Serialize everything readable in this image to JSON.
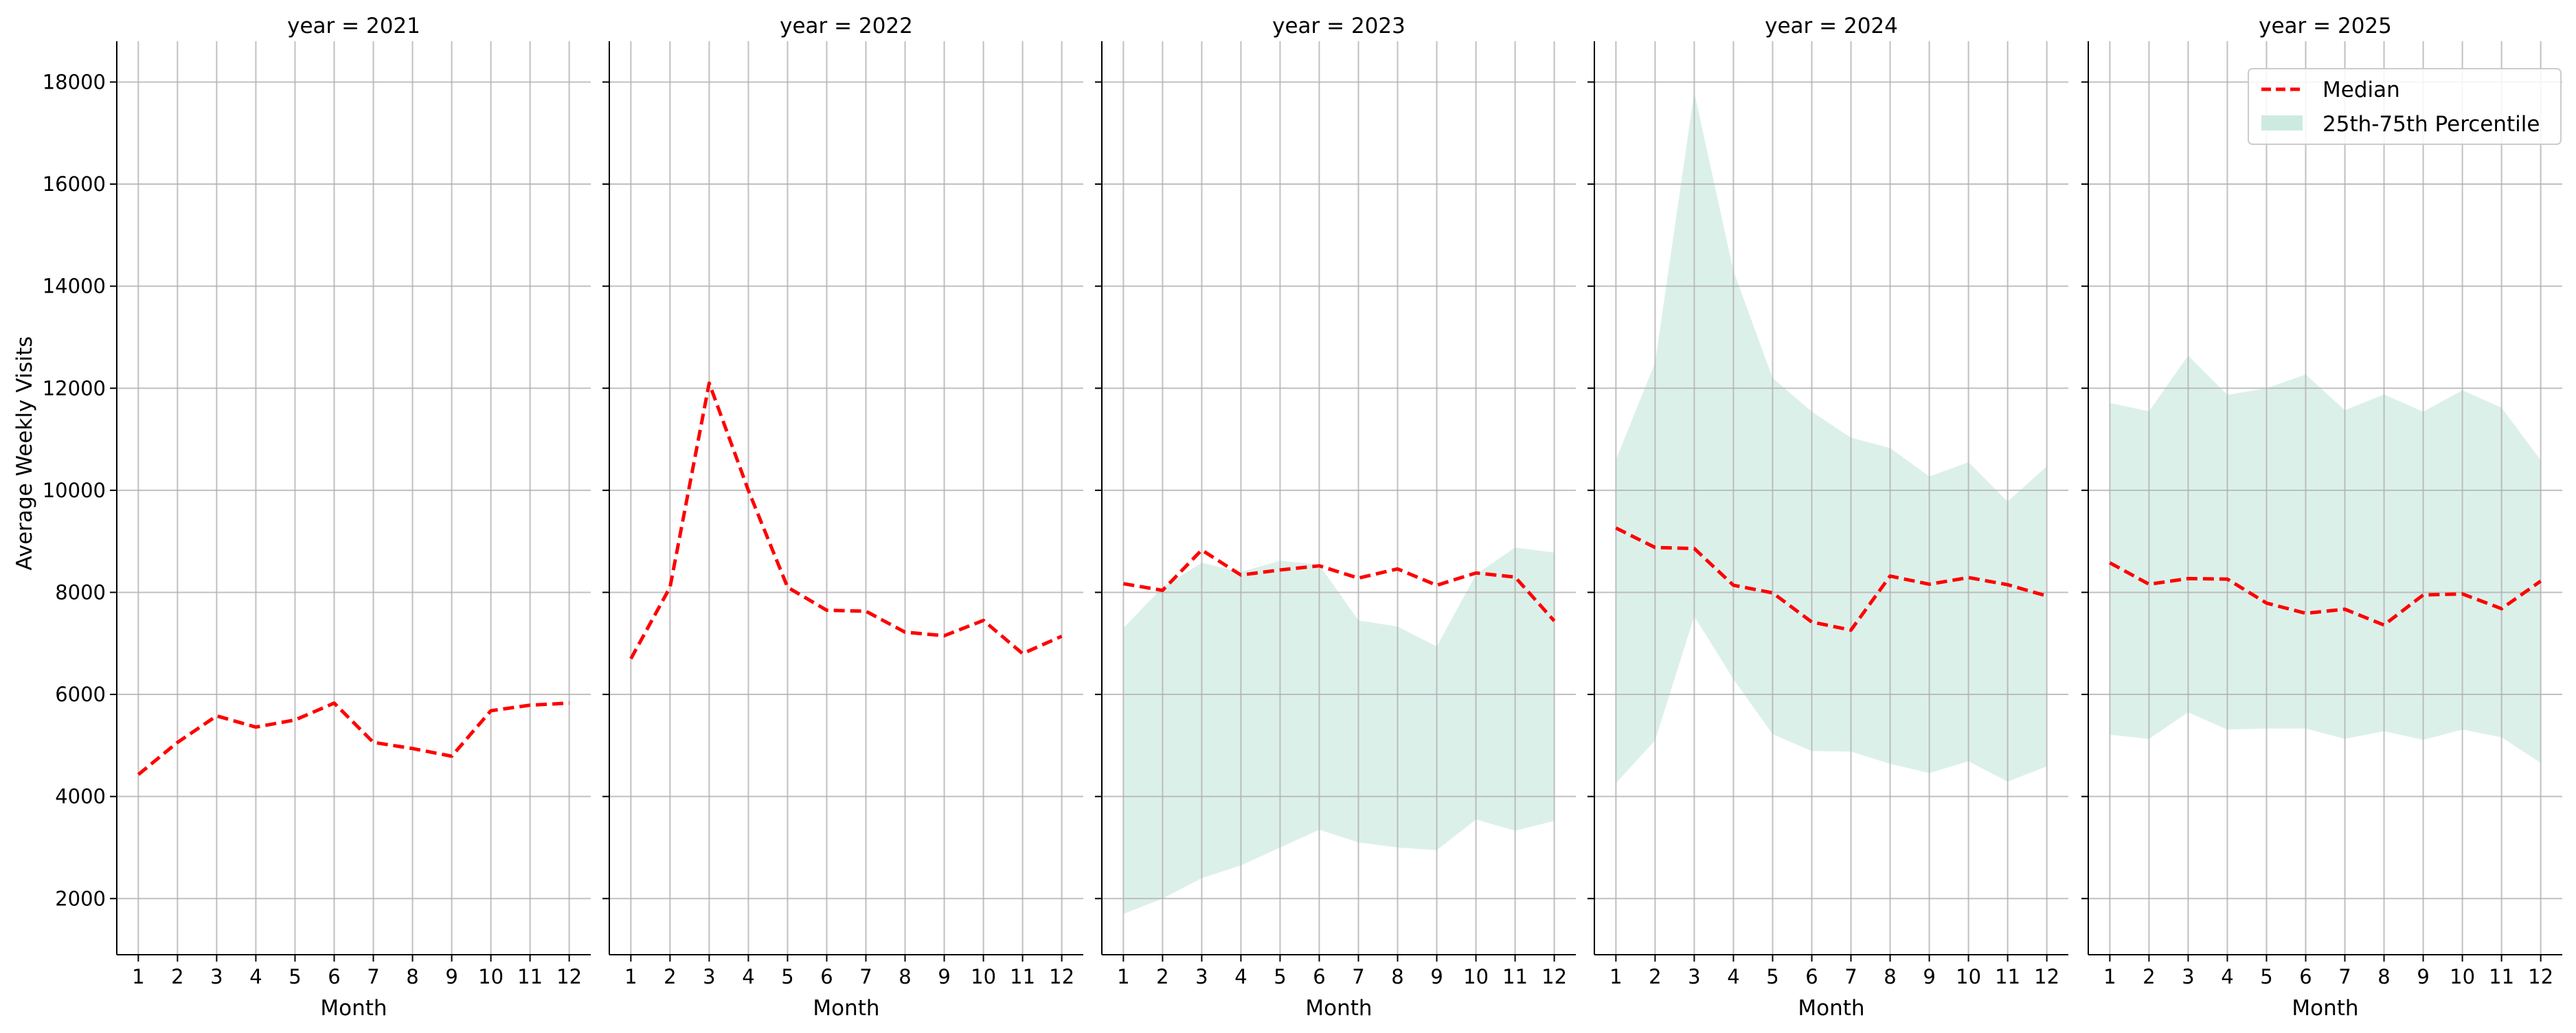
{
  "figure": {
    "ylabel": "Average Weekly Visits",
    "xlabel": "Month",
    "legend": {
      "median": "Median",
      "band": "25th-75th Percentile",
      "placement": "upper-right"
    }
  },
  "colors": {
    "median": "#ff0000",
    "band": "#cdeae1",
    "grid": "#b0b0b0",
    "axis": "#000000"
  },
  "chart_data": [
    {
      "type": "line",
      "title": "year = 2021",
      "xlabel": "Month",
      "ylabel": "Average Weekly Visits",
      "x": [
        1,
        2,
        3,
        4,
        5,
        6,
        7,
        8,
        9,
        10,
        11,
        12
      ],
      "ylim": [
        900,
        18800
      ],
      "grid": true,
      "series": [
        {
          "name": "Median",
          "values": [
            4430,
            5060,
            5580,
            5360,
            5500,
            5830,
            5060,
            4940,
            4790,
            5680,
            5790,
            5830
          ]
        }
      ]
    },
    {
      "type": "line",
      "title": "year = 2022",
      "xlabel": "Month",
      "x": [
        1,
        2,
        3,
        4,
        5,
        6,
        7,
        8,
        9,
        10,
        11,
        12
      ],
      "ylim": [
        900,
        18800
      ],
      "grid": true,
      "series": [
        {
          "name": "Median",
          "values": [
            6700,
            8100,
            12100,
            10000,
            8100,
            7650,
            7630,
            7220,
            7150,
            7450,
            6800,
            7140
          ]
        }
      ]
    },
    {
      "type": "area",
      "title": "year = 2023",
      "xlabel": "Month",
      "x": [
        1,
        2,
        3,
        4,
        5,
        6,
        7,
        8,
        9,
        10,
        11,
        12
      ],
      "ylim": [
        900,
        18800
      ],
      "grid": true,
      "series": [
        {
          "name": "Median",
          "values": [
            8170,
            8040,
            8830,
            8340,
            8440,
            8520,
            8280,
            8460,
            8140,
            8380,
            8300,
            7440
          ]
        },
        {
          "name": "25th-75th Percentile",
          "low": [
            1700,
            2000,
            2400,
            2650,
            3000,
            3350,
            3100,
            3000,
            2950,
            3550,
            3330,
            3520
          ],
          "high": [
            7300,
            8100,
            8580,
            8400,
            8620,
            8540,
            7450,
            7330,
            6940,
            8350,
            8880,
            8780
          ]
        }
      ]
    },
    {
      "type": "area",
      "title": "year = 2024",
      "xlabel": "Month",
      "x": [
        1,
        2,
        3,
        4,
        5,
        6,
        7,
        8,
        9,
        10,
        11,
        12
      ],
      "ylim": [
        900,
        18800
      ],
      "grid": true,
      "series": [
        {
          "name": "Median",
          "values": [
            9260,
            8880,
            8860,
            8140,
            7990,
            7420,
            7260,
            8320,
            8160,
            8290,
            8150,
            7930
          ]
        },
        {
          "name": "25th-75th Percentile",
          "low": [
            4260,
            5100,
            7530,
            6300,
            5220,
            4890,
            4880,
            4640,
            4460,
            4690,
            4290,
            4590
          ],
          "high": [
            10600,
            12500,
            17800,
            14300,
            12200,
            11540,
            11030,
            10830,
            10270,
            10550,
            9780,
            10470
          ]
        }
      ]
    },
    {
      "type": "area",
      "title": "year = 2025",
      "xlabel": "Month",
      "x": [
        1,
        2,
        3,
        4,
        5,
        6,
        7,
        8,
        9,
        10,
        11,
        12
      ],
      "ylim": [
        900,
        18800
      ],
      "grid": true,
      "series": [
        {
          "name": "Median",
          "values": [
            8580,
            8160,
            8270,
            8260,
            7790,
            7590,
            7670,
            7360,
            7950,
            7970,
            7680,
            8220
          ]
        },
        {
          "name": "25th-75th Percentile",
          "low": [
            5210,
            5130,
            5650,
            5310,
            5330,
            5330,
            5130,
            5280,
            5110,
            5310,
            5160,
            4660
          ],
          "high": [
            11710,
            11550,
            12640,
            11870,
            12000,
            12270,
            11570,
            11880,
            11540,
            11960,
            11620,
            10590
          ]
        }
      ]
    }
  ],
  "y_ticks": [
    2000,
    4000,
    6000,
    8000,
    10000,
    12000,
    14000,
    16000,
    18000
  ]
}
